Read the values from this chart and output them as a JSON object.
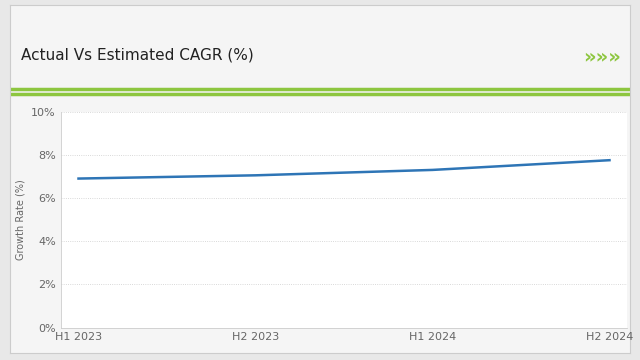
{
  "title": "Actual Vs Estimated CAGR (%)",
  "x_labels": [
    "H1 2023",
    "H2 2023",
    "H1 2024",
    "H2 2024"
  ],
  "x_values": [
    0,
    1,
    2,
    3
  ],
  "y_values": [
    6.9,
    7.05,
    7.3,
    7.75
  ],
  "ylabel": "Growth Rate (%)",
  "ylim": [
    0,
    10
  ],
  "yticks": [
    0,
    2,
    4,
    6,
    8,
    10
  ],
  "ytick_labels": [
    "0%",
    "2%",
    "4%",
    "6%",
    "8%",
    "10%"
  ],
  "line_color": "#2E75B6",
  "line_width": 1.8,
  "bg_color": "#E8E8E8",
  "plot_bg_color": "#FFFFFF",
  "frame_bg_color": "#F5F5F5",
  "green_bar_color": "#8DC63F",
  "title_fontsize": 11,
  "ylabel_fontsize": 7,
  "tick_fontsize": 8,
  "chevron_color": "#8DC63F",
  "chevron_text": "»»»"
}
